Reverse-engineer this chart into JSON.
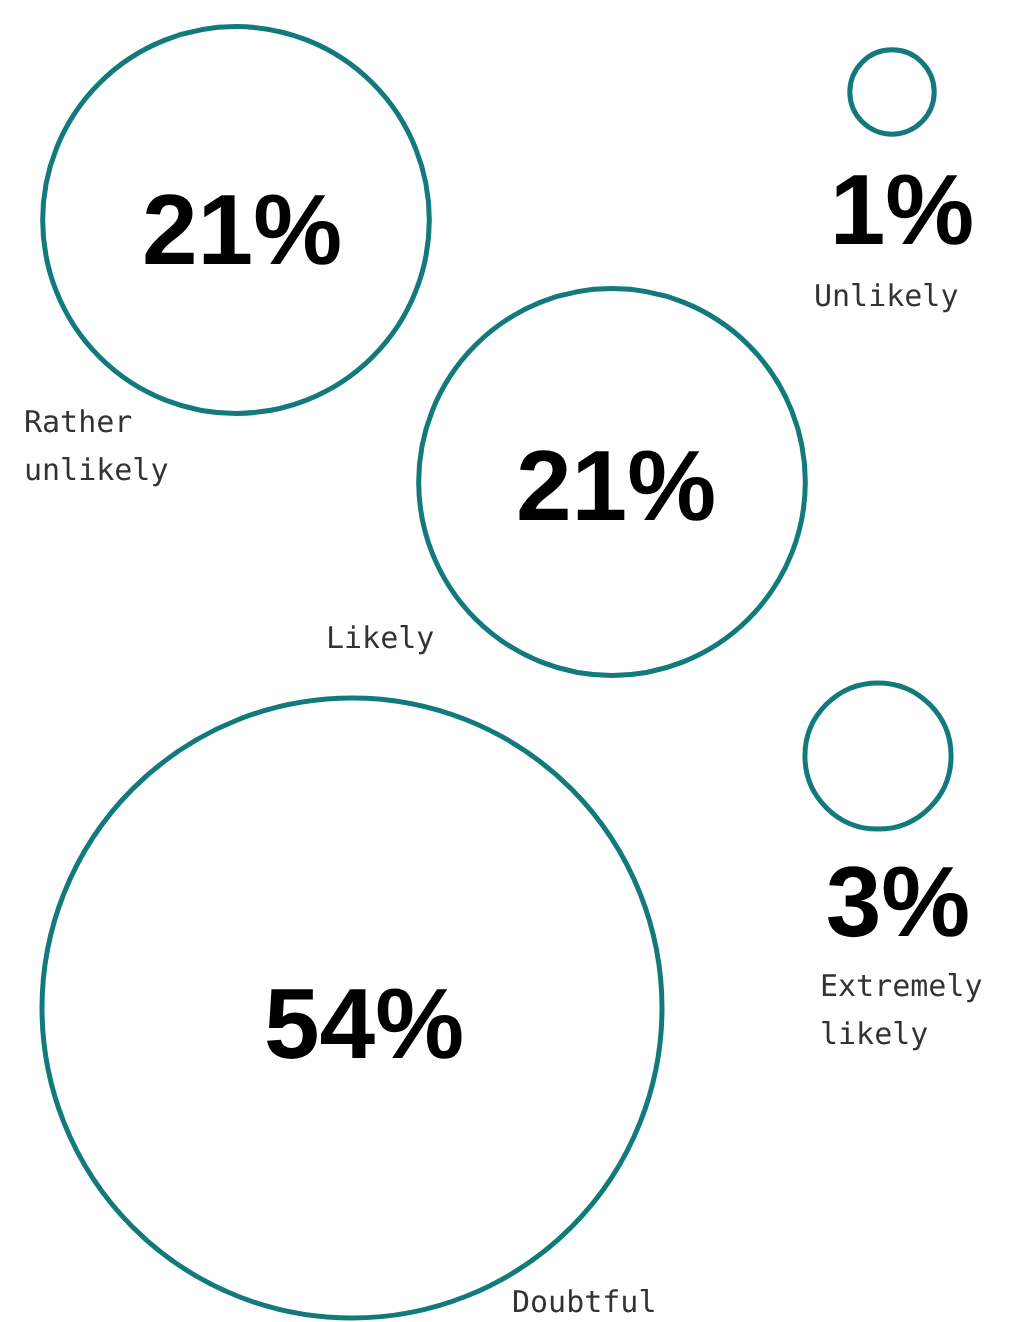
{
  "chart_data": {
    "type": "other",
    "categories": [
      "Rather unlikely",
      "Unlikely",
      "Likely",
      "Extremely likely",
      "Doubtful"
    ],
    "values": [
      21,
      1,
      21,
      3,
      54
    ],
    "value_labels": [
      "21%",
      "1%",
      "21%",
      "3%",
      "54%"
    ],
    "color": "#137a7b"
  }
}
